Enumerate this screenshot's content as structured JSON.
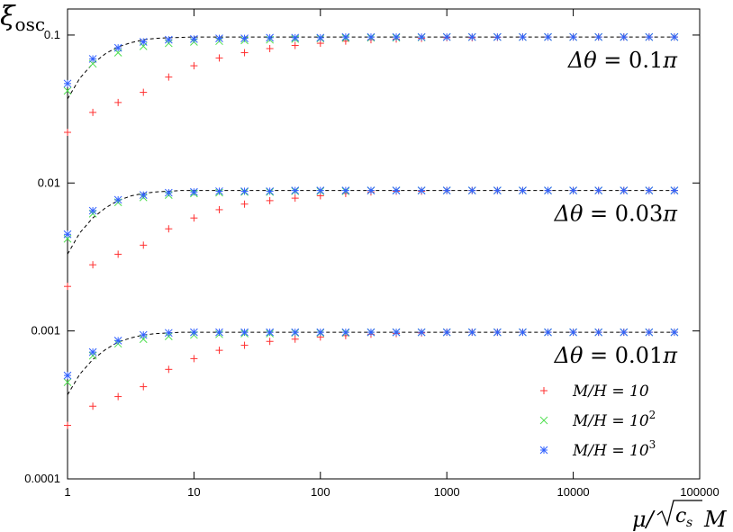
{
  "chart_data": {
    "type": "scatter",
    "xscale": "log",
    "yscale": "log",
    "xlim": [
      1,
      100000
    ],
    "ylim": [
      0.0001,
      0.15
    ],
    "grid": false,
    "legend_position": "bottom-right",
    "x_ticks": [
      {
        "v": 1,
        "label": "1"
      },
      {
        "v": 10,
        "label": "10"
      },
      {
        "v": 100,
        "label": "100"
      },
      {
        "v": 1000,
        "label": "1000"
      },
      {
        "v": 10000,
        "label": "10000"
      },
      {
        "v": 100000,
        "label": "100000"
      }
    ],
    "y_ticks": [
      {
        "v": 0.0001,
        "label": "0.0001"
      },
      {
        "v": 0.001,
        "label": "0.001"
      },
      {
        "v": 0.01,
        "label": "0.01"
      },
      {
        "v": 0.1,
        "label": "0.1"
      }
    ],
    "xlabel": {
      "pre": "μ/",
      "radicand": "c",
      "sub": "s",
      "post": "M"
    },
    "ylabel": {
      "main": "ξ",
      "sub": "osc"
    },
    "x": [
      1,
      1.585,
      2.512,
      3.981,
      6.31,
      10,
      15.85,
      25.12,
      39.81,
      63.1,
      100,
      158.5,
      251.2,
      398.1,
      631,
      1000,
      1585,
      2512,
      3981,
      6310,
      10000,
      15850,
      25120,
      39810,
      63100
    ],
    "series": [
      {
        "name": "M/H = 10",
        "label_pre": "M/H = 10",
        "label_sup": "",
        "marker": "plus",
        "color": "#ff3030",
        "values": [
          [
            0.022,
            0.03,
            0.035,
            0.041,
            0.052,
            0.062,
            0.07,
            0.076,
            0.081,
            0.085,
            0.088,
            0.091,
            0.093,
            0.094,
            0.095,
            0.096,
            0.096,
            0.0965,
            0.097,
            0.097,
            0.097,
            0.097,
            0.097,
            0.097,
            0.097
          ],
          [
            0.002,
            0.0028,
            0.0033,
            0.0038,
            0.0049,
            0.0058,
            0.0066,
            0.0072,
            0.0076,
            0.0079,
            0.0082,
            0.0085,
            0.0087,
            0.0088,
            0.0088,
            0.0089,
            0.0089,
            0.0089,
            0.0089,
            0.0089,
            0.0089,
            0.0089,
            0.0089,
            0.0089,
            0.0089
          ],
          [
            0.00023,
            0.00031,
            0.00036,
            0.00042,
            0.00055,
            0.00065,
            0.00074,
            0.0008,
            0.00085,
            0.00088,
            0.00091,
            0.00093,
            0.00095,
            0.00096,
            0.00097,
            0.00098,
            0.00098,
            0.00098,
            0.00098,
            0.00098,
            0.00098,
            0.00098,
            0.00098,
            0.00098,
            0.00098
          ]
        ]
      },
      {
        "name": "M/H = 10^2",
        "label_pre": "M/H = 10",
        "label_sup": "2",
        "marker": "cross",
        "color": "#50e050",
        "values": [
          [
            0.042,
            0.064,
            0.076,
            0.084,
            0.088,
            0.09,
            0.091,
            0.092,
            0.093,
            0.094,
            0.095,
            0.0955,
            0.096,
            0.096,
            0.0965,
            0.097,
            0.097,
            0.097,
            0.097,
            0.097,
            0.097,
            0.097,
            0.097,
            0.097,
            0.097
          ],
          [
            0.0042,
            0.0062,
            0.0074,
            0.008,
            0.0083,
            0.0085,
            0.0086,
            0.0087,
            0.0087,
            0.0088,
            0.0088,
            0.0088,
            0.0089,
            0.0089,
            0.0089,
            0.0089,
            0.0089,
            0.0089,
            0.0089,
            0.0089,
            0.0089,
            0.0089,
            0.0089,
            0.0089,
            0.0089
          ],
          [
            0.00045,
            0.00068,
            0.00082,
            0.00088,
            0.00092,
            0.00094,
            0.00095,
            0.00096,
            0.00096,
            0.00097,
            0.00097,
            0.00097,
            0.00098,
            0.00098,
            0.00098,
            0.00098,
            0.00098,
            0.00098,
            0.00098,
            0.00098,
            0.00098,
            0.00098,
            0.00098,
            0.00098,
            0.00098
          ]
        ]
      },
      {
        "name": "M/H = 10^3",
        "label_pre": "M/H = 10",
        "label_sup": "3",
        "marker": "star",
        "color": "#3060ff",
        "values": [
          [
            0.047,
            0.069,
            0.082,
            0.09,
            0.093,
            0.094,
            0.095,
            0.095,
            0.096,
            0.096,
            0.096,
            0.097,
            0.097,
            0.097,
            0.097,
            0.097,
            0.097,
            0.097,
            0.097,
            0.097,
            0.097,
            0.097,
            0.097,
            0.097,
            0.097
          ],
          [
            0.0045,
            0.0065,
            0.0077,
            0.0083,
            0.0086,
            0.0087,
            0.0088,
            0.0088,
            0.0088,
            0.0089,
            0.0089,
            0.0089,
            0.0089,
            0.0089,
            0.0089,
            0.0089,
            0.0089,
            0.0089,
            0.0089,
            0.0089,
            0.0089,
            0.0089,
            0.0089,
            0.0089,
            0.0089
          ],
          [
            0.0005,
            0.00072,
            0.00086,
            0.00094,
            0.00097,
            0.00098,
            0.00098,
            0.00098,
            0.00098,
            0.00098,
            0.00098,
            0.00098,
            0.00098,
            0.00098,
            0.00098,
            0.00098,
            0.00098,
            0.00098,
            0.00098,
            0.00098,
            0.00098,
            0.00098,
            0.00098,
            0.00098,
            0.00098
          ]
        ]
      }
    ],
    "fit_curves": [
      {
        "asymptote": 0.097,
        "x": [
          1,
          1.25,
          1.58,
          2,
          2.5,
          3.2,
          4,
          5,
          6.3,
          8,
          10,
          15,
          25,
          63100
        ],
        "values": [
          0.037,
          0.051,
          0.064,
          0.075,
          0.083,
          0.089,
          0.093,
          0.095,
          0.096,
          0.0965,
          0.097,
          0.097,
          0.097,
          0.097
        ]
      },
      {
        "asymptote": 0.0089,
        "x": [
          1,
          1.25,
          1.58,
          2,
          2.5,
          3.2,
          4,
          5,
          6.3,
          8,
          10,
          15,
          25,
          63100
        ],
        "values": [
          0.0033,
          0.0046,
          0.0058,
          0.0068,
          0.0076,
          0.0082,
          0.0085,
          0.0087,
          0.0088,
          0.0089,
          0.0089,
          0.0089,
          0.0089,
          0.0089
        ]
      },
      {
        "asymptote": 0.00098,
        "x": [
          1,
          1.25,
          1.58,
          2,
          2.5,
          3.2,
          4,
          5,
          6.3,
          8,
          10,
          15,
          25,
          63100
        ],
        "values": [
          0.00037,
          0.00051,
          0.00064,
          0.00075,
          0.00084,
          0.0009,
          0.00094,
          0.00096,
          0.00097,
          0.00098,
          0.00098,
          0.00098,
          0.00098,
          0.00098
        ]
      }
    ],
    "annotations": [
      {
        "prefix": "Δθ = ",
        "number": "0.1",
        "suffix": "π",
        "near_y": 0.097
      },
      {
        "prefix": "Δθ = ",
        "number": "0.03",
        "suffix": "π",
        "near_y": 0.0089
      },
      {
        "prefix": "Δθ = ",
        "number": "0.01",
        "suffix": "π",
        "near_y": 0.00098
      }
    ]
  }
}
